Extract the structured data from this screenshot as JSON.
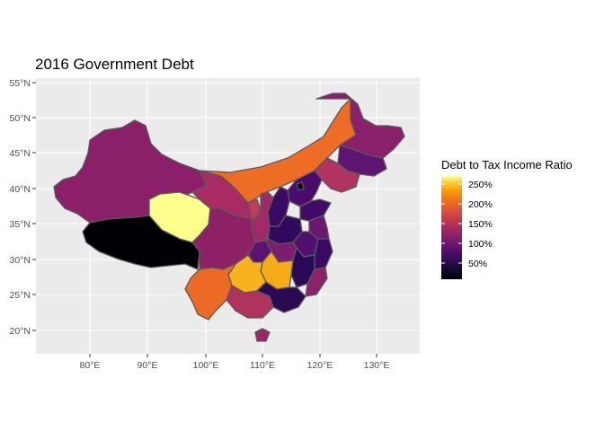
{
  "title": "2016 Government Debt",
  "axes": {
    "y_ticks": [
      "55°N",
      "50°N",
      "45°N",
      "40°N",
      "35°N",
      "30°N",
      "25°N",
      "20°N"
    ],
    "x_ticks": [
      "80°E",
      "90°E",
      "100°E",
      "110°E",
      "120°E",
      "130°E"
    ]
  },
  "legend": {
    "title": "Debt to Tax Income Ratio",
    "labels": [
      "250%",
      "200%",
      "150%",
      "100%",
      "50%"
    ],
    "scale": "inferno"
  },
  "colors": {
    "panel_bg": "#ebebeb",
    "grid": "#ffffff",
    "border": "#5a5a5a",
    "highest": "#fcff8c",
    "lowest": "#000004"
  },
  "regions": [
    {
      "name_icon": "xinjiang-region",
      "level": "mid-magenta"
    },
    {
      "name_icon": "tibet-region",
      "level": "lowest"
    },
    {
      "name_icon": "qinghai-region",
      "level": "highest"
    },
    {
      "name_icon": "inner-mongolia-region",
      "level": "orange"
    },
    {
      "name_icon": "heilongjiang-region",
      "level": "mid-magenta"
    },
    {
      "name_icon": "guizhou-region",
      "level": "yellow-orange"
    },
    {
      "name_icon": "yunnan-region",
      "level": "orange"
    }
  ]
}
